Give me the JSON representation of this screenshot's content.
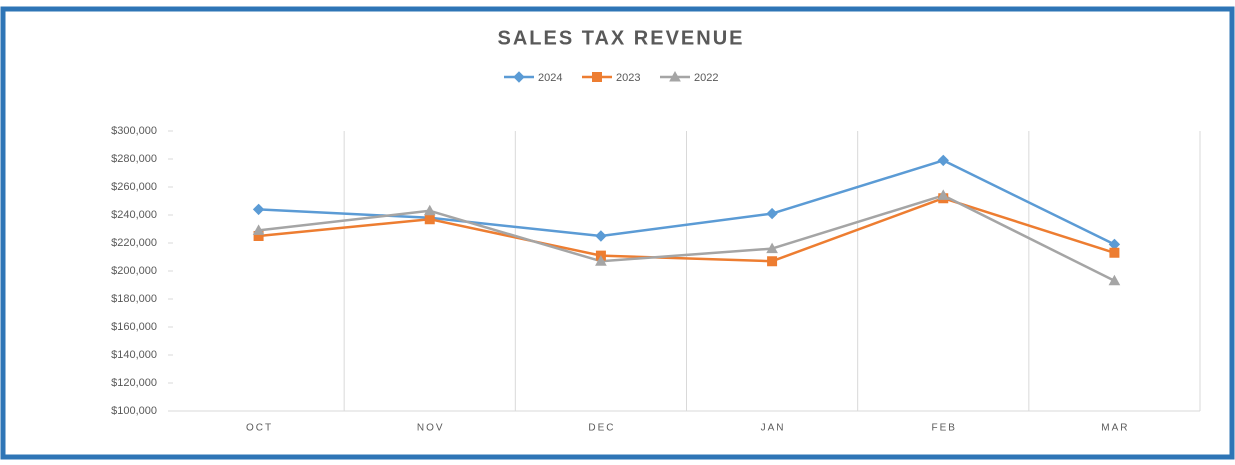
{
  "chart_data": {
    "type": "line",
    "title": "SALES TAX REVENUE",
    "categories": [
      "OCT",
      "NOV",
      "DEC",
      "JAN",
      "FEB",
      "MAR"
    ],
    "series": [
      {
        "name": "2024",
        "color": "#5b9bd5",
        "marker": "diamond",
        "values": [
          244000,
          238000,
          225000,
          241000,
          279000,
          219000
        ]
      },
      {
        "name": "2023",
        "color": "#ed7d31",
        "marker": "square",
        "values": [
          225000,
          237000,
          211000,
          207000,
          252000,
          213000
        ]
      },
      {
        "name": "2022",
        "color": "#a5a5a5",
        "marker": "triangle",
        "values": [
          229000,
          243000,
          207000,
          216000,
          254000,
          193000
        ]
      }
    ],
    "ylim": [
      100000,
      300000
    ],
    "yticks": [
      {
        "value": 100000,
        "label": "$100,000"
      },
      {
        "value": 120000,
        "label": "$120,000"
      },
      {
        "value": 140000,
        "label": "$140,000"
      },
      {
        "value": 160000,
        "label": "$160,000"
      },
      {
        "value": 180000,
        "label": "$180,000"
      },
      {
        "value": 200000,
        "label": "$200,000"
      },
      {
        "value": 220000,
        "label": "$220,000"
      },
      {
        "value": 240000,
        "label": "$240,000"
      },
      {
        "value": 260000,
        "label": "$260,000"
      },
      {
        "value": 280000,
        "label": "$280,000"
      },
      {
        "value": 300000,
        "label": "$300,000"
      }
    ],
    "legend": "top",
    "grid": "vertical"
  }
}
